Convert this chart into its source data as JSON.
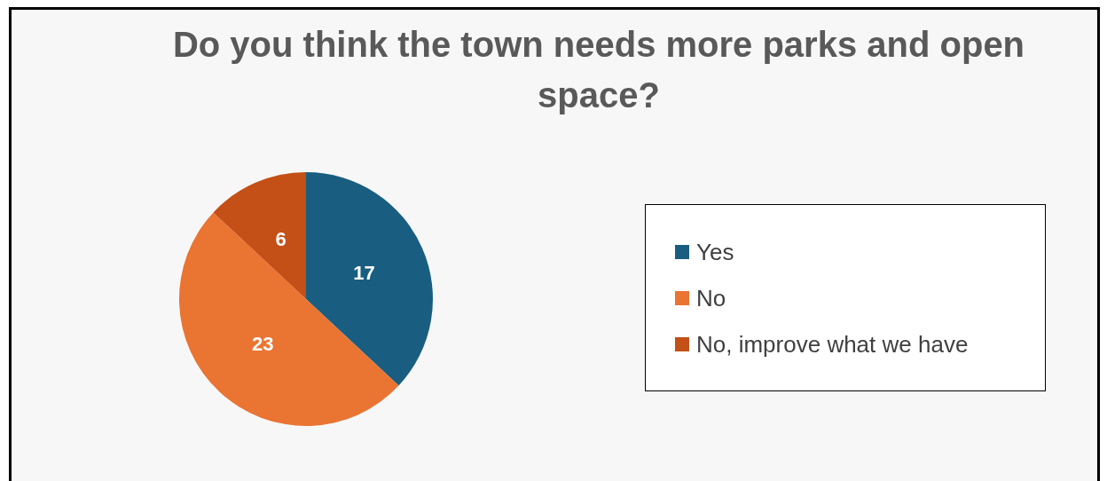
{
  "chart_data": {
    "type": "pie",
    "title": "Do you think the town needs more parks and open space?",
    "categories": [
      "Yes",
      "No",
      "No, improve what we have"
    ],
    "values": [
      17,
      23,
      6
    ],
    "colors": [
      "#195e80",
      "#ea7432",
      "#c44f17"
    ],
    "data_labels": true,
    "legend": "right"
  }
}
